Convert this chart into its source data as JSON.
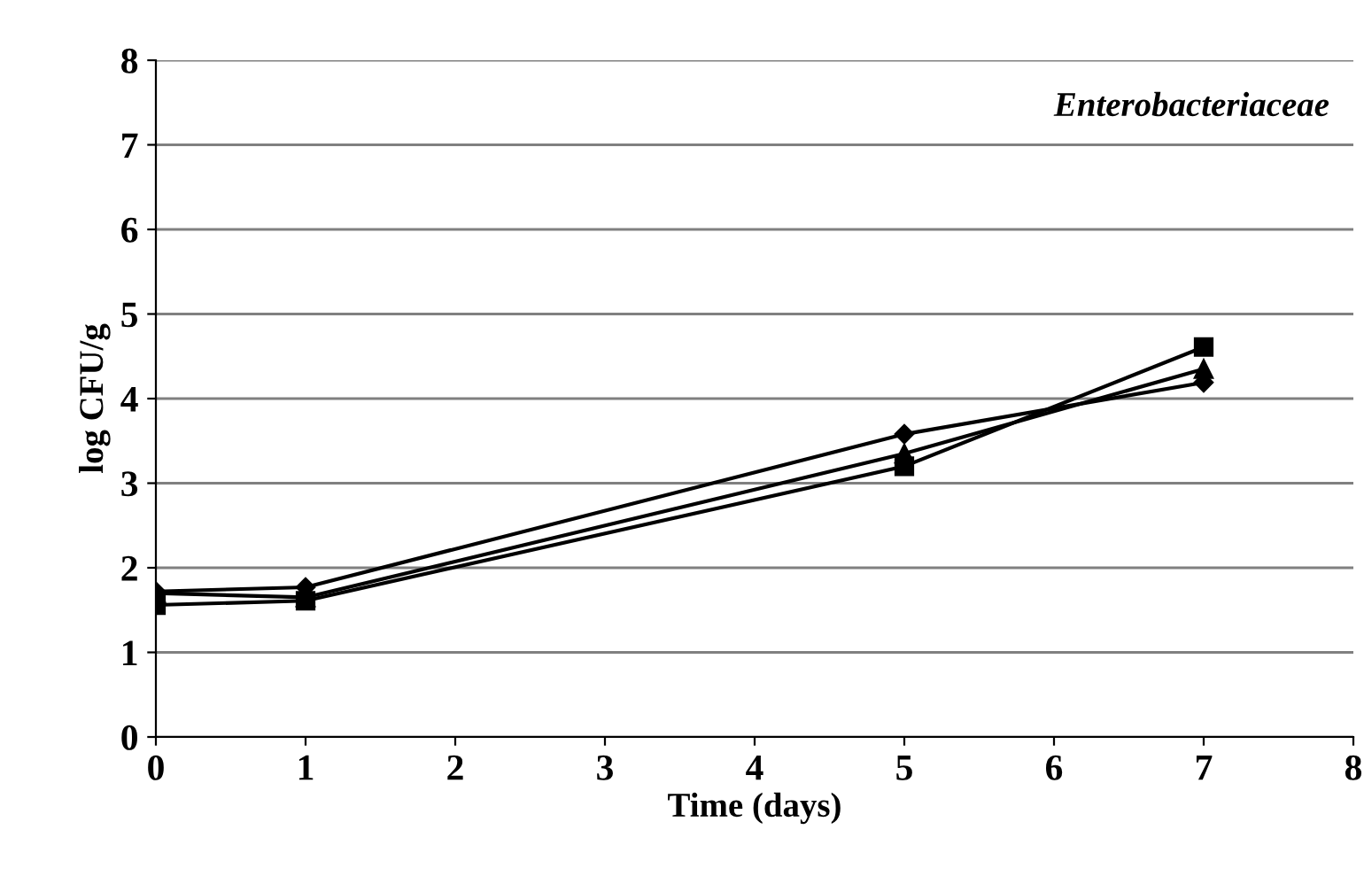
{
  "chart_data": {
    "type": "line",
    "title": "Enterobacteriaceae",
    "xlabel": "Time (days)",
    "ylabel": "log CFU/g",
    "x": [
      0,
      1,
      5,
      7
    ],
    "series": [
      {
        "color": "#000000",
        "marker": "diamond",
        "values": [
          1.72,
          1.77,
          3.58,
          4.19
        ]
      },
      {
        "color": "#000000",
        "marker": "triangle",
        "values": [
          1.7,
          1.65,
          3.35,
          4.35
        ]
      },
      {
        "color": "#000000",
        "marker": "square",
        "values": [
          1.56,
          1.61,
          3.2,
          4.61
        ]
      }
    ],
    "xlim": [
      0,
      8
    ],
    "xticks": [
      0,
      1,
      2,
      3,
      4,
      5,
      6,
      7,
      8
    ],
    "ylim": [
      0,
      8
    ],
    "yticks": [
      0,
      1,
      2,
      3,
      4,
      5,
      6,
      7,
      8
    ],
    "grid": "y",
    "legend": false,
    "line_style": "solid"
  }
}
